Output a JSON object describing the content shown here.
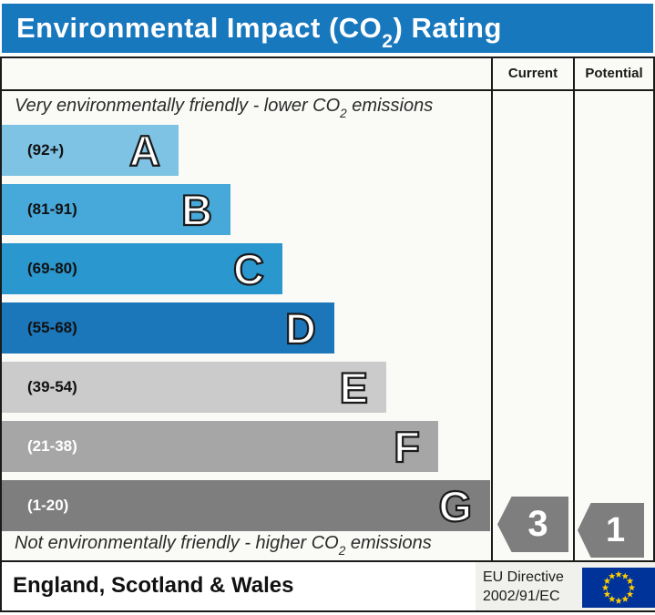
{
  "title": {
    "prefix": "Environmental Impact (CO",
    "sub": "2",
    "suffix": ") Rating"
  },
  "columns": {
    "current": "Current",
    "potential": "Potential"
  },
  "captions": {
    "top": {
      "prefix": "Very environmentally friendly - lower CO",
      "sub": "2",
      "suffix": " emissions"
    },
    "bottom": {
      "prefix": "Not environmentally friendly - higher CO",
      "sub": "2",
      "suffix": " emissions"
    }
  },
  "bands": [
    {
      "letter": "A",
      "range": "(92+)",
      "color": "#7fc3e4",
      "range_color": "#111111"
    },
    {
      "letter": "B",
      "range": "(81-91)",
      "color": "#47a9da",
      "range_color": "#111111"
    },
    {
      "letter": "C",
      "range": "(69-80)",
      "color": "#2a97ce",
      "range_color": "#111111"
    },
    {
      "letter": "D",
      "range": "(55-68)",
      "color": "#1c77ba",
      "range_color": "#111111"
    },
    {
      "letter": "E",
      "range": "(39-54)",
      "color": "#cbcbcb",
      "range_color": "#111111"
    },
    {
      "letter": "F",
      "range": "(21-38)",
      "color": "#a6a6a6",
      "range_color": "#ffffff"
    },
    {
      "letter": "G",
      "range": "(1-20)",
      "color": "#7e7e7e",
      "range_color": "#ffffff"
    }
  ],
  "ratings": {
    "current": {
      "value": "3",
      "color": "#7e7e7e"
    },
    "potential": {
      "value": "1",
      "color": "#7e7e7e"
    }
  },
  "footer": {
    "region": "England, Scotland & Wales",
    "directive_line1": "EU Directive",
    "directive_line2": "2002/91/EC"
  },
  "colors": {
    "title_bar_blue": "#1878be",
    "border_black": "#1a1a1a",
    "flag_blue": "#003399",
    "star_gold": "#ffcc00"
  },
  "chart_data": {
    "type": "bar",
    "title": "Environmental Impact (CO2) Rating",
    "categories": [
      "A",
      "B",
      "C",
      "D",
      "E",
      "F",
      "G"
    ],
    "band_ranges": [
      "92+",
      "81-91",
      "69-80",
      "55-68",
      "39-54",
      "21-38",
      "1-20"
    ],
    "band_colors": [
      "#7fc3e4",
      "#47a9da",
      "#2a97ce",
      "#1c77ba",
      "#cbcbcb",
      "#a6a6a6",
      "#7e7e7e"
    ],
    "series": [
      {
        "name": "Current",
        "values": [
          3
        ],
        "band": "G"
      },
      {
        "name": "Potential",
        "values": [
          1
        ],
        "band": "G"
      }
    ],
    "value_range": [
      1,
      100
    ],
    "orientation": "horizontal",
    "annotations": {
      "top": "Very environmentally friendly - lower CO2 emissions",
      "bottom": "Not environmentally friendly - higher CO2 emissions",
      "footer_left": "England, Scotland & Wales",
      "footer_right": "EU Directive 2002/91/EC"
    }
  }
}
